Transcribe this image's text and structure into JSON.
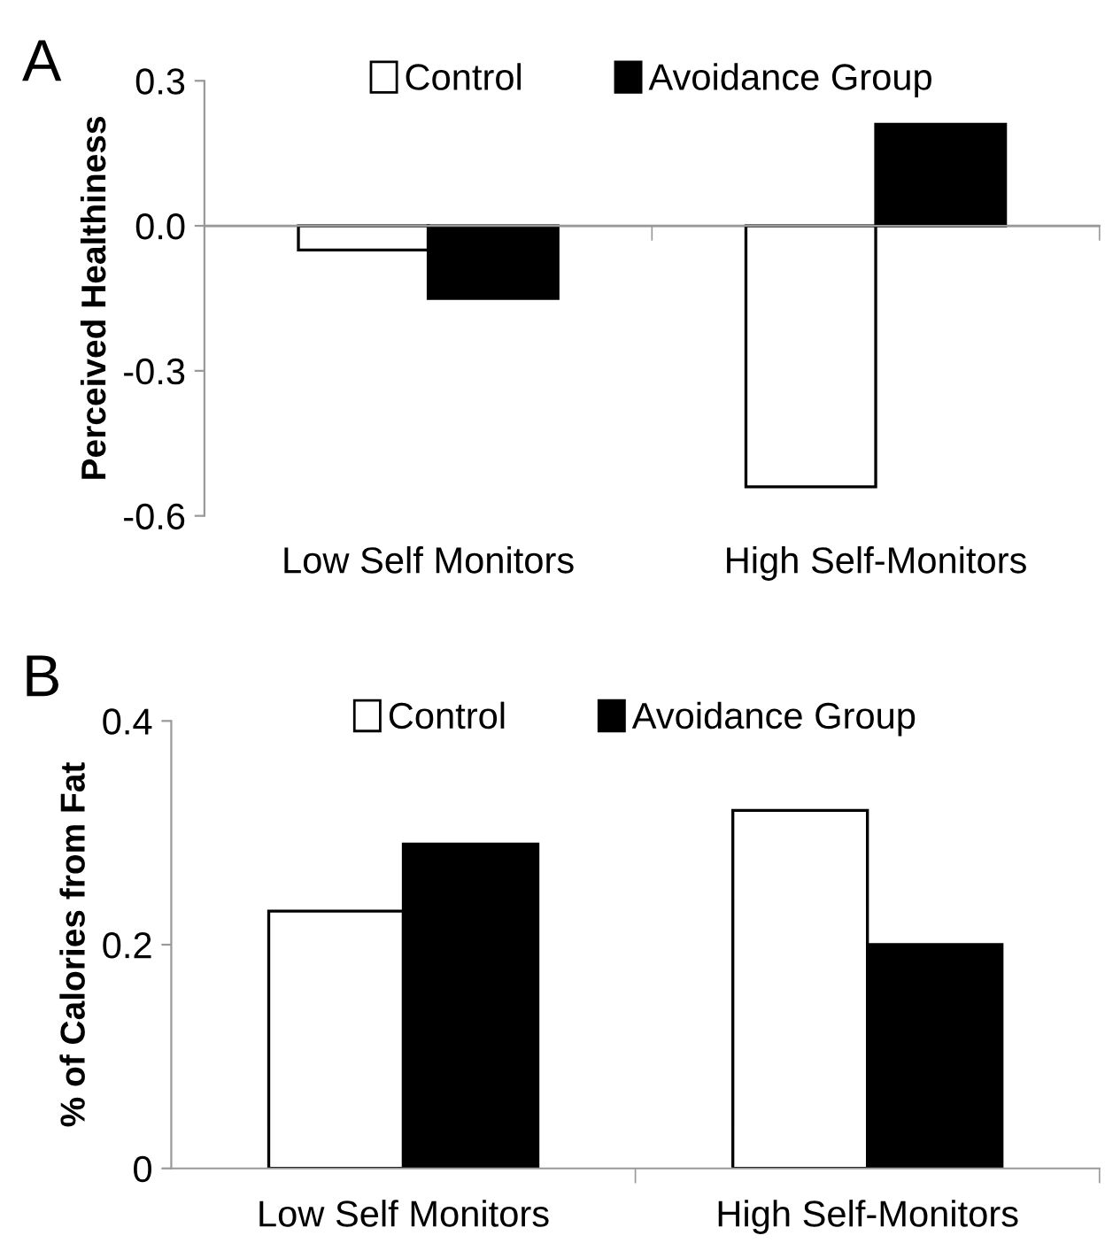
{
  "chart_data": [
    {
      "type": "bar",
      "ylabel": "Perceived Healthiness",
      "annotations": [
        "A"
      ],
      "categories": [
        "Low Self Monitors",
        "High Self-Monitors"
      ],
      "series": [
        {
          "name": "Control",
          "color": "#ffffff",
          "values": [
            -0.05,
            -0.54
          ]
        },
        {
          "name": "Avoidance Group",
          "color": "#000000",
          "values": [
            -0.15,
            0.21
          ]
        }
      ],
      "ref_lines": [
        {
          "axis": "y",
          "value": 0,
          "color": "#999999"
        }
      ],
      "ylim": [
        -0.6,
        0.3
      ],
      "yticks": [
        {
          "value": -0.6,
          "label": "-0.6"
        },
        {
          "value": -0.3,
          "label": "-0.3"
        },
        {
          "value": 0.0,
          "label": "0.0"
        },
        {
          "value": 0.3,
          "label": "0.3"
        }
      ],
      "grid": false,
      "legend": "top"
    },
    {
      "type": "bar",
      "ylabel": "% of Calories from Fat",
      "annotations": [
        "B"
      ],
      "categories": [
        "Low Self Monitors",
        "High Self-Monitors"
      ],
      "series": [
        {
          "name": "Control",
          "color": "#ffffff",
          "values": [
            0.23,
            0.32
          ]
        },
        {
          "name": "Avoidance Group",
          "color": "#000000",
          "values": [
            0.29,
            0.2
          ]
        }
      ],
      "ylim": [
        0,
        0.4
      ],
      "yticks": [
        0,
        0.2,
        0.4
      ],
      "grid": false,
      "legend": "top"
    }
  ]
}
